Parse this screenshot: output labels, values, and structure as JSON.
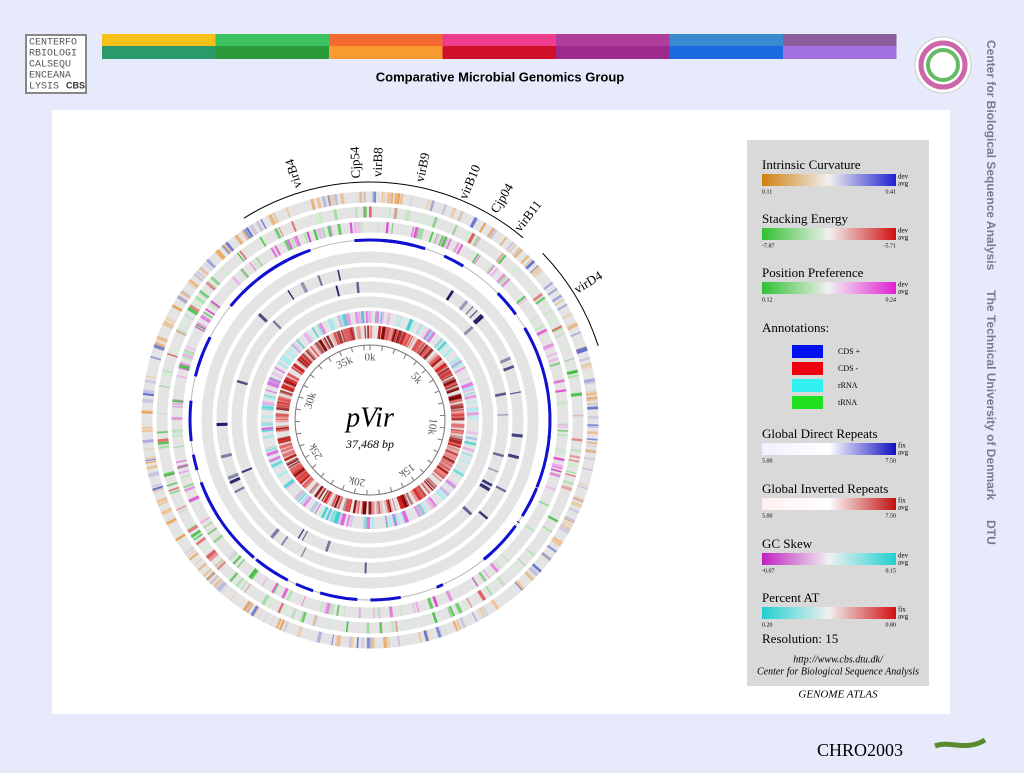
{
  "header": {
    "logo": [
      "CENTERFO",
      "RBIOLOGI",
      "CALSEQU",
      "ENCEANA",
      "LYSIS"
    ],
    "logo_tag": "CBS",
    "title": "Comparative Microbial Genomics Group"
  },
  "side_text": [
    "Center for Biological Sequence Analysis",
    "The Technical University of Denmark",
    "DTU"
  ],
  "atlas": {
    "name": "pVir",
    "length": "37,468 bp",
    "scale": [
      "0k",
      "5k",
      "10k",
      "15k",
      "20k",
      "25k",
      "30k",
      "35k"
    ],
    "genes": [
      "virB4",
      "Cjp54",
      "virB8",
      "virB9",
      "virB10",
      "Cjp04",
      "virB11",
      "virD4"
    ]
  },
  "legend": {
    "tracks": [
      {
        "title": "Intrinsic Curvature",
        "min": "0.11",
        "max": "0.41",
        "tag": [
          "dev",
          "avg"
        ]
      },
      {
        "title": "Stacking Energy",
        "min": "-7.87",
        "max": "-5.71",
        "tag": [
          "dev",
          "avg"
        ]
      },
      {
        "title": "Position Preference",
        "min": "0.12",
        "max": "0.24",
        "tag": [
          "dev",
          "avg"
        ]
      }
    ],
    "annotations_title": "Annotations:",
    "annotations": [
      "CDS +",
      "CDS -",
      "rRNA",
      "tRNA"
    ],
    "tracks2": [
      {
        "title": "Global Direct Repeats",
        "min": "5.00",
        "max": "7.50",
        "tag": [
          "fix",
          "avg"
        ]
      },
      {
        "title": "Global Inverted Repeats",
        "min": "5.00",
        "max": "7.50",
        "tag": [
          "fix",
          "avg"
        ]
      },
      {
        "title": "GC Skew",
        "min": "-0.07",
        "max": "0.15",
        "tag": [
          "dev",
          "avg"
        ]
      },
      {
        "title": "Percent AT",
        "min": "0.20",
        "max": "0.80",
        "tag": [
          "fix",
          "avg"
        ]
      }
    ],
    "resolution": "Resolution: 15",
    "url": "http://www.cbs.dtu.dk/",
    "org": "Center for Biological Sequence Analysis",
    "footer": "GENOME ATLAS"
  },
  "footer": "CHRO2003"
}
